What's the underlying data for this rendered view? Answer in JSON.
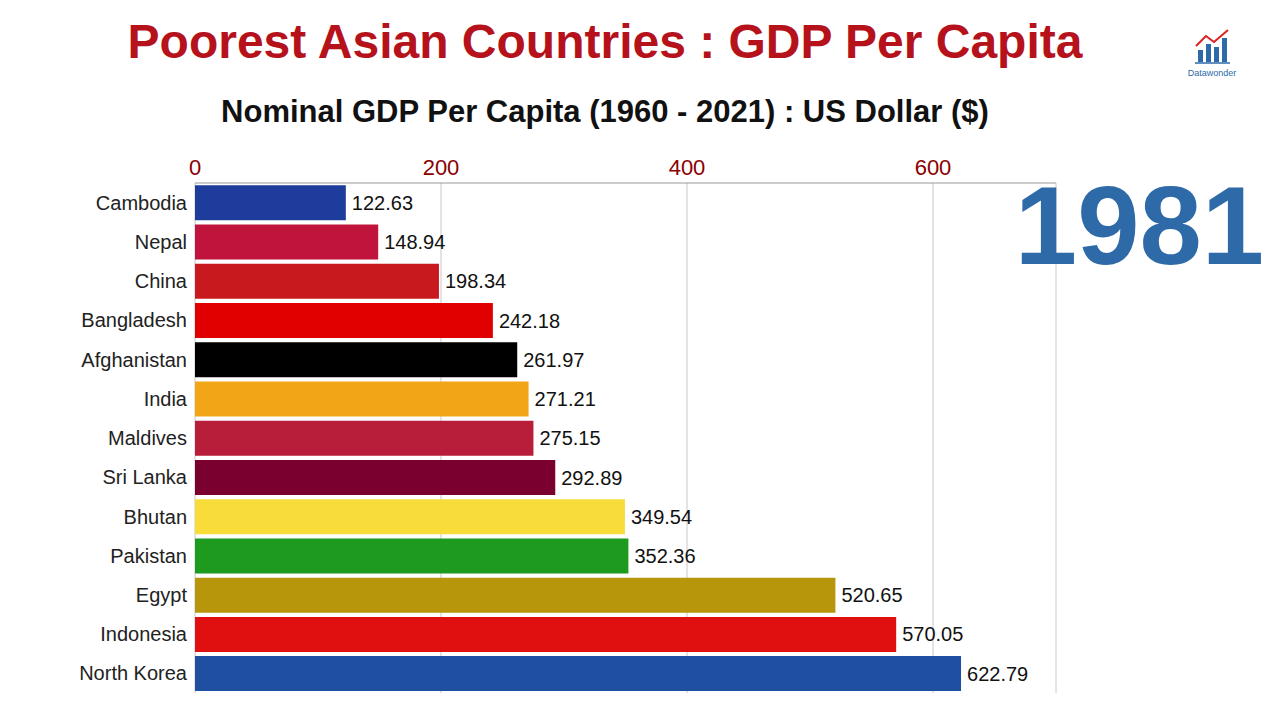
{
  "chart_data": {
    "type": "bar",
    "title": "Poorest Asian Countries : GDP Per Capita",
    "subtitle": "Nominal GDP Per Capita (1960 - 2021) : US Dollar ($)",
    "annotations": [
      "1981",
      "Datawonder"
    ],
    "orientation": "horizontal",
    "categories": [
      "Cambodia",
      "Nepal",
      "China",
      "Bangladesh",
      "Afghanistan",
      "India",
      "Maldives",
      "Sri Lanka",
      "Bhutan",
      "Pakistan",
      "Egypt",
      "Indonesia",
      "North Korea"
    ],
    "values": [
      122.63,
      148.94,
      198.34,
      242.18,
      261.97,
      271.21,
      275.15,
      292.89,
      349.54,
      352.36,
      520.65,
      570.05,
      622.79
    ],
    "colors": [
      "#1d3c9c",
      "#c0143c",
      "#c8191e",
      "#e00000",
      "#000000",
      "#f2a516",
      "#b81e3a",
      "#7a0030",
      "#f7dc3a",
      "#1e9a1e",
      "#b8960c",
      "#e01010",
      "#1f4fa0"
    ],
    "xlim": [
      0,
      700
    ],
    "xticks": [
      0,
      200,
      400,
      600
    ],
    "grid": true,
    "data_labels": true
  }
}
